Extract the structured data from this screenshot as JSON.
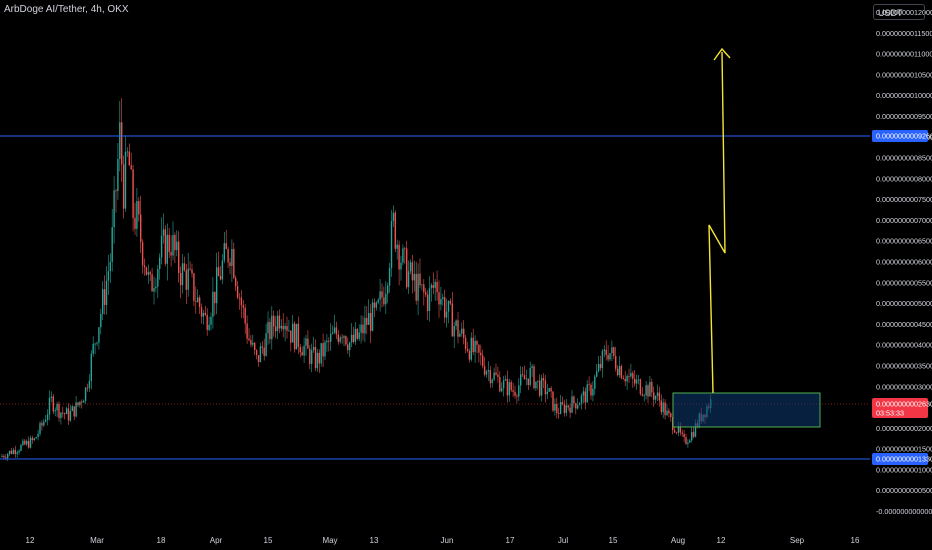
{
  "header": {
    "symbol_title": "ArbDoge AI/Tether, 4h, OKX",
    "currency": "USDT"
  },
  "colors": {
    "background": "#000000",
    "up_candle": "#26a69a",
    "down_candle": "#ef5350",
    "support_resistance_line": "#2962ff",
    "projection_arrow": "#f5e533",
    "zone_fill": "#0d3a73",
    "zone_border": "#4caf50",
    "price_line": "#ff3b30",
    "axis_text": "#d1d4dc"
  },
  "chart_data": {
    "type": "candlestick",
    "x_ticks": [
      "12",
      "Mar",
      "18",
      "Apr",
      "15",
      "May",
      "13",
      "Jun",
      "17",
      "Jul",
      "15",
      "Aug",
      "12",
      "Sep",
      "16"
    ],
    "y_ticks": [
      "0.0000000012000",
      "0.0000000011500",
      "0.0000000011000",
      "0.0000000010500",
      "0.0000000010000",
      "0.0000000009500",
      "0.0000000009000",
      "0.0000000008500",
      "0.0000000008000",
      "0.0000000007500",
      "0.0000000007000",
      "0.0000000006500",
      "0.0000000006000",
      "0.0000000005500",
      "0.0000000005000",
      "0.0000000004500",
      "0.0000000004000",
      "0.0000000003500",
      "0.0000000003000",
      "0.0000000002000",
      "0.0000000001500",
      "0.0000000001000",
      "0.0000000000500",
      "-0.0000000000000"
    ],
    "ylim": [
      0,
      1.2e-09
    ],
    "horizontal_levels": [
      {
        "label": "0.0000000009260",
        "value": 9.26e-10
      },
      {
        "label": "0.0000000001330",
        "value": 1.33e-10
      }
    ],
    "current_price": {
      "label": "0.0000000002630",
      "value": 2.63e-10,
      "countdown": "03:53:33"
    },
    "price_path": [
      [
        0,
        1.3e-10
      ],
      [
        2,
        1.5e-10
      ],
      [
        4,
        1.7e-10
      ],
      [
        5,
        2.1e-10
      ],
      [
        6,
        2.65e-10
      ],
      [
        7,
        2.4e-10
      ],
      [
        8,
        2.3e-10
      ],
      [
        9,
        2.5e-10
      ],
      [
        10,
        2.9e-10
      ],
      [
        11,
        4e-10
      ],
      [
        12,
        5e-10
      ],
      [
        13,
        6.2e-10
      ],
      [
        14,
        9e-10
      ],
      [
        14.5,
        7.7e-10
      ],
      [
        15,
        8.6e-10
      ],
      [
        15.5,
        7.2e-10
      ],
      [
        16,
        7e-10
      ],
      [
        17,
        6e-10
      ],
      [
        17.5,
        5.3e-10
      ],
      [
        18,
        5.7e-10
      ],
      [
        19,
        6.3e-10
      ],
      [
        20,
        6.5e-10
      ],
      [
        21,
        5.8e-10
      ],
      [
        22,
        5.6e-10
      ],
      [
        23,
        5.1e-10
      ],
      [
        24,
        4.6e-10
      ],
      [
        25,
        5.2e-10
      ],
      [
        26,
        5.9e-10
      ],
      [
        27,
        6.4e-10
      ],
      [
        28,
        5.2e-10
      ],
      [
        29,
        4.2e-10
      ],
      [
        30,
        3.6e-10
      ],
      [
        31,
        4.1e-10
      ],
      [
        32,
        4.5e-10
      ],
      [
        33,
        4.8e-10
      ],
      [
        34,
        4.3e-10
      ],
      [
        35,
        4.1e-10
      ],
      [
        36,
        3.8e-10
      ],
      [
        37,
        3.6e-10
      ],
      [
        38,
        3.9e-10
      ],
      [
        39,
        4.2e-10
      ],
      [
        40,
        4.4e-10
      ],
      [
        41,
        4e-10
      ],
      [
        42,
        4.2e-10
      ],
      [
        43,
        4.6e-10
      ],
      [
        44,
        4.7e-10
      ],
      [
        45,
        5.4e-10
      ],
      [
        46,
        6.9e-10
      ],
      [
        47,
        6e-10
      ],
      [
        48,
        5.6e-10
      ],
      [
        49,
        5.3e-10
      ],
      [
        50,
        5.1e-10
      ],
      [
        51,
        5.5e-10
      ],
      [
        52,
        4.9e-10
      ],
      [
        53,
        4.5e-10
      ],
      [
        54,
        4.2e-10
      ],
      [
        55,
        3.9e-10
      ],
      [
        56,
        3.7e-10
      ],
      [
        57,
        3.4e-10
      ],
      [
        58,
        3.2e-10
      ],
      [
        59,
        3e-10
      ],
      [
        60,
        2.9e-10
      ],
      [
        61,
        3.1e-10
      ],
      [
        62,
        3.3e-10
      ],
      [
        63,
        3e-10
      ],
      [
        64,
        2.9e-10
      ],
      [
        65,
        2.4e-10
      ],
      [
        66,
        2.5e-10
      ],
      [
        67,
        2.6e-10
      ],
      [
        68,
        2.7e-10
      ],
      [
        69,
        2.9e-10
      ],
      [
        70,
        3.4e-10
      ],
      [
        71,
        3.9e-10
      ],
      [
        72,
        3.6e-10
      ],
      [
        73,
        3.3e-10
      ],
      [
        74,
        3.1e-10
      ],
      [
        75,
        3e-10
      ],
      [
        76,
        2.9e-10
      ],
      [
        77,
        2.7e-10
      ],
      [
        78,
        2.3e-10
      ],
      [
        79,
        2e-10
      ],
      [
        80,
        1.65e-10
      ],
      [
        81,
        1.9e-10
      ],
      [
        82,
        2.3e-10
      ],
      [
        83,
        2.63e-10
      ]
    ]
  }
}
